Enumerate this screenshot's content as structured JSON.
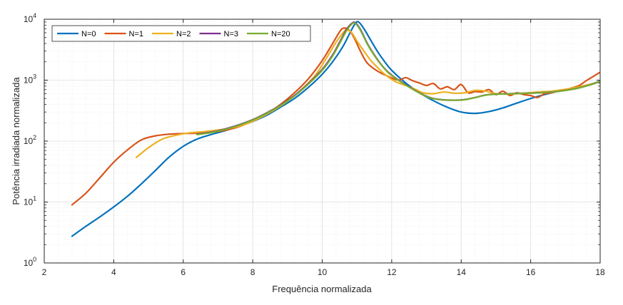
{
  "chart_data": {
    "type": "line",
    "title": "",
    "xlabel": "Frequência normalizada",
    "ylabel": "Potência irradiada normalizada",
    "xlim": [
      2,
      18
    ],
    "ylim": [
      1,
      10000
    ],
    "yscale": "log",
    "grid": true,
    "minor_grid": true,
    "legend_position": "top-left",
    "legend_orientation": "horizontal",
    "x_ticks": [
      "2",
      "4",
      "6",
      "8",
      "10",
      "12",
      "14",
      "16",
      "18"
    ],
    "y_ticks": [
      {
        "base": "10",
        "exp": "0"
      },
      {
        "base": "10",
        "exp": "1"
      },
      {
        "base": "10",
        "exp": "2"
      },
      {
        "base": "10",
        "exp": "3"
      },
      {
        "base": "10",
        "exp": "4"
      }
    ],
    "series": [
      {
        "name": "N=0",
        "color": "#0072BD",
        "points": [
          [
            2.8,
            2.75
          ],
          [
            3.2,
            4
          ],
          [
            3.6,
            5.7
          ],
          [
            4.0,
            8.3
          ],
          [
            4.4,
            12.5
          ],
          [
            4.8,
            20
          ],
          [
            5.2,
            33
          ],
          [
            5.6,
            55
          ],
          [
            6.0,
            82
          ],
          [
            6.4,
            108
          ],
          [
            6.8,
            128
          ],
          [
            7.2,
            148
          ],
          [
            7.6,
            175
          ],
          [
            8.0,
            210
          ],
          [
            8.4,
            265
          ],
          [
            8.8,
            360
          ],
          [
            9.2,
            500
          ],
          [
            9.6,
            760
          ],
          [
            10.0,
            1250
          ],
          [
            10.3,
            2000
          ],
          [
            10.6,
            3600
          ],
          [
            10.8,
            6000
          ],
          [
            10.95,
            8500
          ],
          [
            11.05,
            9000
          ],
          [
            11.2,
            7000
          ],
          [
            11.4,
            4500
          ],
          [
            11.6,
            2900
          ],
          [
            11.8,
            2000
          ],
          [
            12.0,
            1450
          ],
          [
            12.4,
            900
          ],
          [
            12.8,
            620
          ],
          [
            13.2,
            460
          ],
          [
            13.6,
            360
          ],
          [
            14.0,
            300
          ],
          [
            14.4,
            285
          ],
          [
            14.8,
            305
          ],
          [
            15.2,
            350
          ],
          [
            15.6,
            420
          ],
          [
            16.0,
            500
          ],
          [
            16.4,
            580
          ],
          [
            16.8,
            660
          ],
          [
            17.2,
            740
          ],
          [
            17.6,
            820
          ],
          [
            18.0,
            960
          ]
        ]
      },
      {
        "name": "N=1",
        "color": "#D95319",
        "points": [
          [
            2.8,
            9
          ],
          [
            3.2,
            14
          ],
          [
            3.6,
            25
          ],
          [
            4.0,
            45
          ],
          [
            4.4,
            72
          ],
          [
            4.8,
            105
          ],
          [
            5.2,
            122
          ],
          [
            5.6,
            130
          ],
          [
            6.0,
            133
          ],
          [
            6.4,
            135
          ],
          [
            6.8,
            140
          ],
          [
            7.2,
            150
          ],
          [
            7.6,
            172
          ],
          [
            8.0,
            215
          ],
          [
            8.4,
            280
          ],
          [
            8.8,
            400
          ],
          [
            9.2,
            620
          ],
          [
            9.6,
            1050
          ],
          [
            10.0,
            2100
          ],
          [
            10.3,
            4000
          ],
          [
            10.5,
            6200
          ],
          [
            10.6,
            7100
          ],
          [
            10.75,
            6800
          ],
          [
            10.9,
            5200
          ],
          [
            11.1,
            3000
          ],
          [
            11.3,
            1900
          ],
          [
            11.6,
            1400
          ],
          [
            11.9,
            1150
          ],
          [
            12.2,
            1000
          ],
          [
            12.4,
            1100
          ],
          [
            12.6,
            980
          ],
          [
            12.8,
            900
          ],
          [
            13.0,
            820
          ],
          [
            13.2,
            880
          ],
          [
            13.4,
            720
          ],
          [
            13.6,
            780
          ],
          [
            13.8,
            700
          ],
          [
            14.0,
            850
          ],
          [
            14.2,
            620
          ],
          [
            14.4,
            650
          ],
          [
            14.6,
            640
          ],
          [
            14.8,
            700
          ],
          [
            15.0,
            580
          ],
          [
            15.2,
            660
          ],
          [
            15.4,
            560
          ],
          [
            15.6,
            620
          ],
          [
            15.8,
            580
          ],
          [
            16.0,
            560
          ],
          [
            16.2,
            520
          ],
          [
            16.4,
            600
          ],
          [
            16.6,
            620
          ],
          [
            16.8,
            680
          ],
          [
            17.0,
            700
          ],
          [
            17.2,
            750
          ],
          [
            17.4,
            820
          ],
          [
            17.6,
            980
          ],
          [
            17.8,
            1150
          ],
          [
            18.0,
            1350
          ]
        ]
      },
      {
        "name": "N=2",
        "color": "#EDB120",
        "points": [
          [
            4.65,
            54
          ],
          [
            5.0,
            78
          ],
          [
            5.4,
            108
          ],
          [
            5.8,
            125
          ],
          [
            6.2,
            137
          ],
          [
            6.6,
            143
          ],
          [
            7.0,
            152
          ],
          [
            7.4,
            165
          ],
          [
            7.8,
            190
          ],
          [
            8.2,
            240
          ],
          [
            8.6,
            320
          ],
          [
            9.0,
            450
          ],
          [
            9.4,
            700
          ],
          [
            9.8,
            1200
          ],
          [
            10.1,
            2200
          ],
          [
            10.4,
            4200
          ],
          [
            10.6,
            6000
          ],
          [
            10.7,
            6700
          ],
          [
            10.85,
            6000
          ],
          [
            11.0,
            4400
          ],
          [
            11.2,
            3000
          ],
          [
            11.4,
            2100
          ],
          [
            11.6,
            1600
          ],
          [
            11.8,
            1250
          ],
          [
            12.1,
            950
          ],
          [
            12.4,
            820
          ],
          [
            12.7,
            700
          ],
          [
            12.9,
            620
          ],
          [
            13.2,
            600
          ],
          [
            13.5,
            640
          ],
          [
            13.8,
            610
          ],
          [
            14.1,
            620
          ],
          [
            14.4,
            680
          ],
          [
            14.7,
            660
          ],
          [
            15.0,
            600
          ],
          [
            15.4,
            590
          ],
          [
            15.8,
            610
          ],
          [
            16.2,
            640
          ],
          [
            16.6,
            660
          ],
          [
            17.0,
            710
          ],
          [
            17.4,
            780
          ],
          [
            17.8,
            880
          ],
          [
            18.0,
            940
          ]
        ]
      },
      {
        "name": "N=3",
        "color": "#7E2F8E",
        "points": [
          [
            6.4,
            130
          ],
          [
            6.8,
            140
          ],
          [
            7.2,
            158
          ],
          [
            7.6,
            185
          ],
          [
            8.0,
            225
          ],
          [
            8.4,
            290
          ],
          [
            8.8,
            390
          ],
          [
            9.2,
            560
          ],
          [
            9.6,
            880
          ],
          [
            10.0,
            1500
          ],
          [
            10.3,
            2600
          ],
          [
            10.5,
            4200
          ],
          [
            10.7,
            6800
          ],
          [
            10.85,
            8500
          ],
          [
            10.95,
            8800
          ],
          [
            11.1,
            6800
          ],
          [
            11.3,
            4000
          ],
          [
            11.5,
            2600
          ],
          [
            11.7,
            1800
          ],
          [
            11.9,
            1350
          ],
          [
            12.2,
            1000
          ],
          [
            12.5,
            780
          ],
          [
            12.8,
            620
          ],
          [
            13.1,
            520
          ],
          [
            13.4,
            480
          ],
          [
            13.8,
            470
          ],
          [
            14.1,
            480
          ],
          [
            14.4,
            520
          ],
          [
            14.7,
            570
          ],
          [
            15.0,
            590
          ],
          [
            15.4,
            600
          ],
          [
            15.8,
            610
          ],
          [
            16.2,
            620
          ],
          [
            16.6,
            640
          ],
          [
            17.0,
            680
          ],
          [
            17.4,
            750
          ],
          [
            17.8,
            870
          ],
          [
            18.0,
            960
          ]
        ]
      },
      {
        "name": "N=20",
        "color": "#77AC30",
        "points": [
          [
            6.4,
            128
          ],
          [
            6.8,
            138
          ],
          [
            7.2,
            155
          ],
          [
            7.6,
            182
          ],
          [
            8.0,
            222
          ],
          [
            8.4,
            285
          ],
          [
            8.8,
            385
          ],
          [
            9.2,
            550
          ],
          [
            9.6,
            860
          ],
          [
            10.0,
            1450
          ],
          [
            10.3,
            2500
          ],
          [
            10.5,
            4000
          ],
          [
            10.7,
            6500
          ],
          [
            10.85,
            8300
          ],
          [
            10.95,
            8600
          ],
          [
            11.1,
            6600
          ],
          [
            11.3,
            3900
          ],
          [
            11.5,
            2550
          ],
          [
            11.7,
            1780
          ],
          [
            11.9,
            1330
          ],
          [
            12.2,
            990
          ],
          [
            12.5,
            770
          ],
          [
            12.8,
            615
          ],
          [
            13.1,
            515
          ],
          [
            13.4,
            478
          ],
          [
            13.8,
            468
          ],
          [
            14.1,
            478
          ],
          [
            14.4,
            518
          ],
          [
            14.7,
            568
          ],
          [
            15.0,
            588
          ],
          [
            15.4,
            598
          ],
          [
            15.8,
            608
          ],
          [
            16.2,
            618
          ],
          [
            16.6,
            638
          ],
          [
            17.0,
            678
          ],
          [
            17.4,
            748
          ],
          [
            17.8,
            868
          ],
          [
            18.0,
            958
          ]
        ]
      }
    ]
  }
}
